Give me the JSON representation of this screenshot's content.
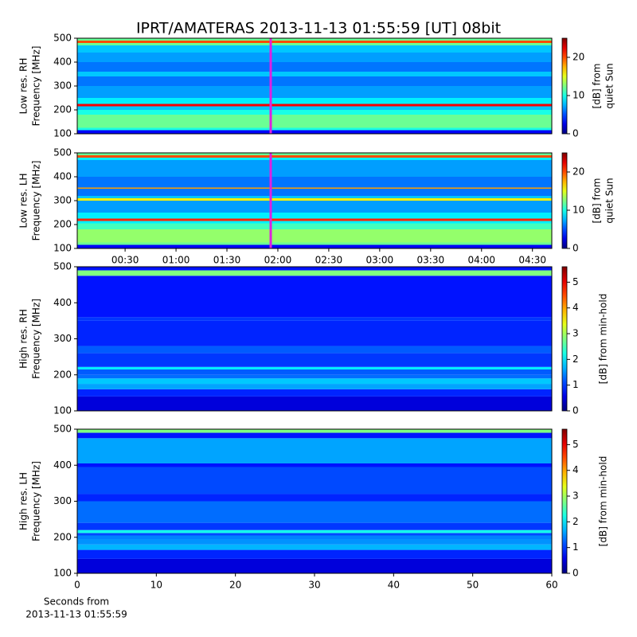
{
  "chart_data": [
    {
      "type": "heatmap",
      "title": "IPRT/AMATERAS 2013-11-13 01:55:59 [UT]   08bit",
      "ylabel": [
        "Low res. RH",
        "Frequency [MHz]"
      ],
      "ylim": [
        100,
        500
      ],
      "yticks": [
        100,
        200,
        300,
        400,
        500
      ],
      "xlim": [
        0.03,
        4.69
      ],
      "marker": 1.93,
      "colormap": "jet",
      "clim": [
        0,
        25
      ],
      "cticks": [
        0,
        10,
        20
      ],
      "clabel": [
        "[dB] from",
        "quiet Sun"
      ],
      "bins": [
        100,
        115,
        125,
        180,
        200,
        215,
        225,
        250,
        300,
        340,
        360,
        400,
        440,
        470,
        480,
        490,
        500
      ],
      "levels": [
        3,
        10,
        12,
        10,
        8,
        22,
        9,
        7,
        6,
        8,
        6,
        7,
        8,
        12,
        20,
        12
      ]
    },
    {
      "type": "heatmap",
      "ylabel": [
        "Low res. LH",
        "Frequency [MHz]"
      ],
      "ylim": [
        100,
        500
      ],
      "yticks": [
        100,
        200,
        300,
        400,
        500
      ],
      "xlim": [
        0.03,
        4.69
      ],
      "marker": 1.93,
      "colormap": "jet",
      "xticks": [
        {
          "value": 0.5,
          "label": "00:30"
        },
        {
          "value": 1,
          "label": "01:00"
        },
        {
          "value": 1.5,
          "label": "01:30"
        },
        {
          "value": 2,
          "label": "02:00"
        },
        {
          "value": 2.5,
          "label": "02:30"
        },
        {
          "value": 3,
          "label": "03:00"
        },
        {
          "value": 3.5,
          "label": "03:30"
        },
        {
          "value": 4,
          "label": "04:00"
        },
        {
          "value": 4.5,
          "label": "04:30"
        }
      ],
      "clim": [
        0,
        25
      ],
      "cticks": [
        0,
        10,
        20
      ],
      "clabel": [
        "[dB] from",
        "quiet Sun"
      ],
      "bins": [
        100,
        115,
        125,
        180,
        205,
        215,
        225,
        250,
        300,
        310,
        320,
        350,
        355,
        400,
        470,
        480,
        490,
        500
      ],
      "levels": [
        3,
        12,
        13,
        11,
        9,
        21,
        9,
        7,
        16,
        8,
        6,
        18,
        6,
        7,
        9,
        20,
        12
      ]
    },
    {
      "type": "heatmap",
      "ylabel": [
        "High res. RH",
        "Frequency [MHz]"
      ],
      "ylim": [
        100,
        500
      ],
      "yticks": [
        100,
        200,
        300,
        400,
        500
      ],
      "xlim": [
        0,
        60
      ],
      "colormap": "jet",
      "clim": [
        0,
        5.6
      ],
      "cticks": [
        0,
        1,
        2,
        3,
        4,
        5
      ],
      "clabel": [
        "[dB] from min-hold"
      ],
      "bins": [
        100,
        140,
        160,
        175,
        190,
        200,
        215,
        222,
        260,
        280,
        350,
        360,
        475,
        490,
        500
      ],
      "levels": [
        0.5,
        0.9,
        1.6,
        1.8,
        1.3,
        1.2,
        2.0,
        1.0,
        1.2,
        0.9,
        1.0,
        0.8,
        2.8,
        0.8
      ]
    },
    {
      "type": "heatmap",
      "ylabel": [
        "High res. LH",
        "Frequency [MHz]"
      ],
      "ylim": [
        100,
        500
      ],
      "yticks": [
        100,
        200,
        300,
        400,
        500
      ],
      "xlim": [
        0,
        60
      ],
      "xticks": [
        0,
        10,
        20,
        30,
        40,
        50,
        60
      ],
      "colormap": "jet",
      "xlabel": [
        "Seconds from",
        "2013-11-13 01:55:59"
      ],
      "clim": [
        0,
        5.6
      ],
      "cticks": [
        0,
        1,
        2,
        3,
        4,
        5
      ],
      "clabel": [
        "[dB] from min-hold"
      ],
      "bins": [
        100,
        140,
        165,
        180,
        195,
        205,
        212,
        220,
        240,
        300,
        320,
        395,
        405,
        475,
        490,
        500
      ],
      "levels": [
        0.5,
        0.9,
        1.7,
        1.5,
        1.4,
        1.1,
        2.2,
        1.0,
        1.3,
        0.9,
        1.1,
        0.8,
        1.6,
        0.8,
        2.8
      ]
    }
  ]
}
